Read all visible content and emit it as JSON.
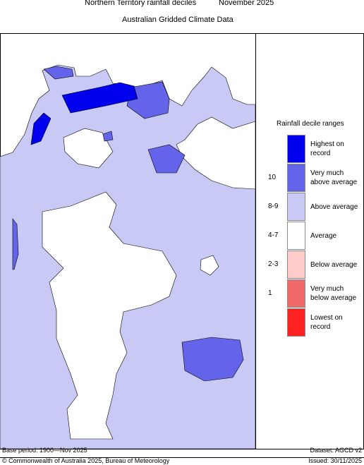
{
  "header": {
    "title": "Northern Territory rainfall deciles",
    "period": "November 2025",
    "subtitle": "Australian Gridded Climate Data"
  },
  "legend": {
    "title": "Rainfall decile ranges",
    "items": [
      {
        "label": "Highest on record",
        "color": "#0000ee"
      },
      {
        "decile": "10",
        "label": "Very much above average",
        "color": "#6464ea"
      },
      {
        "decile": "8-9",
        "label": "Above average",
        "color": "#c9c9f5"
      },
      {
        "decile": "4-7",
        "label": "Average",
        "color": "#ffffff"
      },
      {
        "decile": "2-3",
        "label": "Below average",
        "color": "#ffcccc"
      },
      {
        "decile": "1",
        "label": "Very much below average",
        "color": "#f06a6a"
      },
      {
        "label": "Lowest on record",
        "color": "#ff2222"
      }
    ]
  },
  "footer": {
    "base_period": "Base period: 1900—Nov 2025",
    "dataset": "Dataset: AGCD v2",
    "copyright": "© Commonwealth of Australia 2025, Bureau of Meteorology",
    "issued": "Issued: 30/11/2025"
  }
}
